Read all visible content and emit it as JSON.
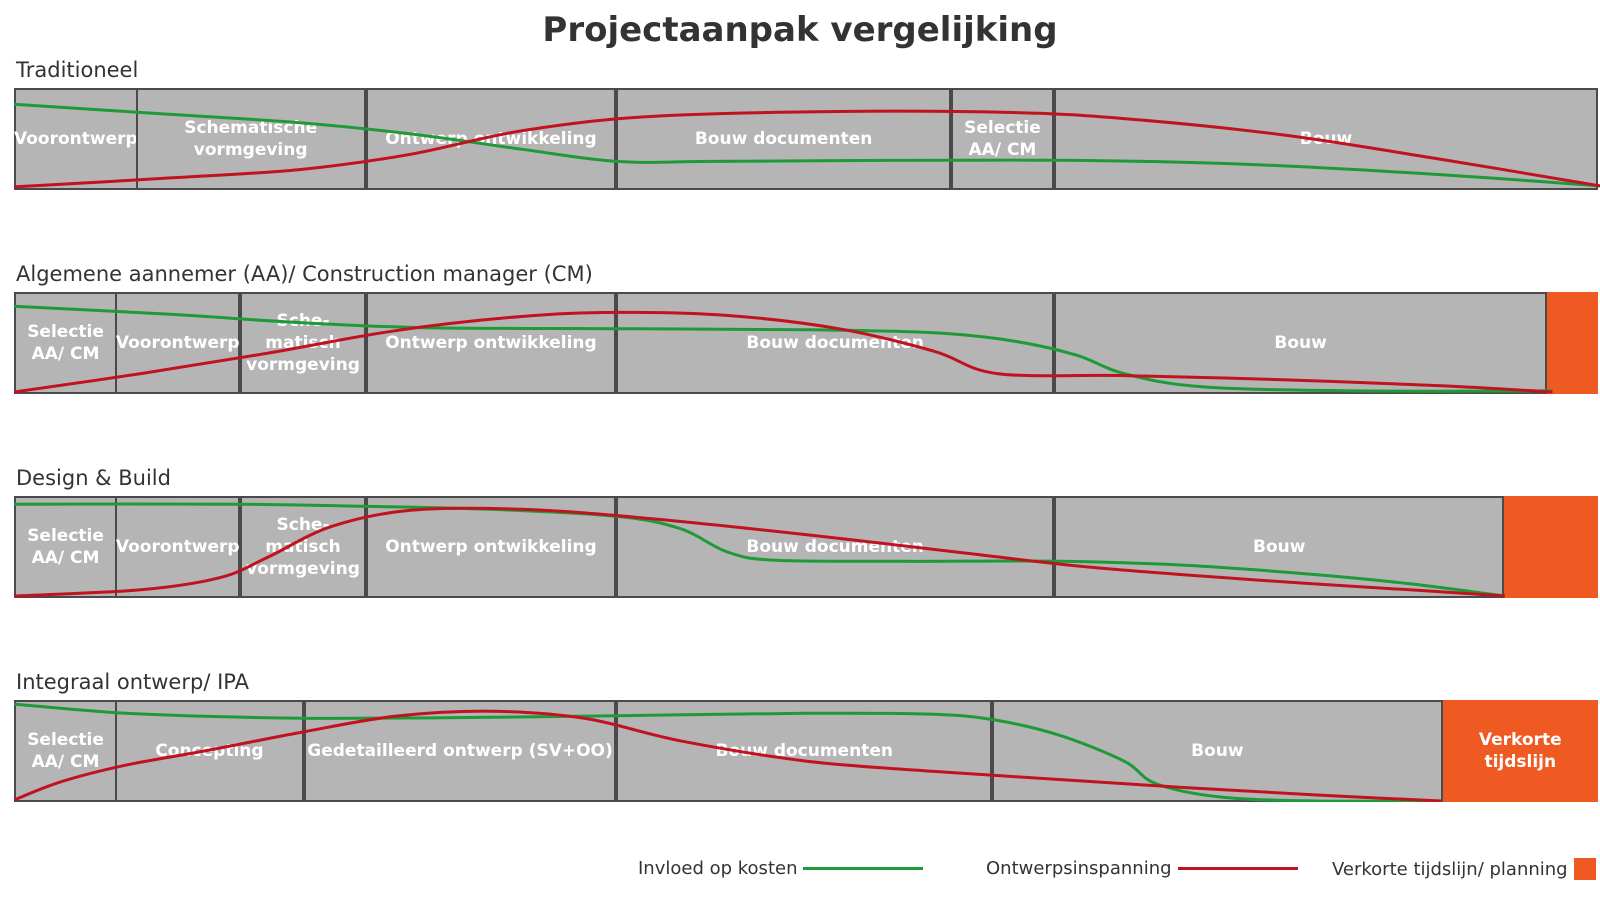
{
  "title": "Projectaanpak vergelijking",
  "colors": {
    "green": "#1f9a38",
    "red": "#c1121f",
    "orange": "#ef5a23",
    "gray": "#b5b5b5"
  },
  "rows": [
    {
      "label": "Traditioneel",
      "segments": [
        {
          "text": "Voorontwerp",
          "start": 0,
          "end": 7.8
        },
        {
          "text": "Schematische\nvormgeving",
          "start": 7.8,
          "end": 22.3
        },
        {
          "text": "Ontwerp ontwikkeling",
          "start": 22.3,
          "end": 38.1
        },
        {
          "text": "Bouw documenten",
          "start": 38.1,
          "end": 59.2
        },
        {
          "text": "Selectie\nAA/ CM",
          "start": 59.2,
          "end": 65.7
        },
        {
          "text": "Bouw",
          "start": 65.7,
          "end": 100
        }
      ],
      "green": [
        [
          0,
          84
        ],
        [
          8,
          76
        ],
        [
          18,
          66
        ],
        [
          25,
          55
        ],
        [
          32,
          40
        ],
        [
          38,
          28
        ],
        [
          44,
          28
        ],
        [
          55,
          29
        ],
        [
          67,
          29
        ],
        [
          78,
          25
        ],
        [
          90,
          15
        ],
        [
          100,
          4
        ]
      ],
      "red": [
        [
          0,
          3
        ],
        [
          10,
          12
        ],
        [
          18,
          20
        ],
        [
          25,
          35
        ],
        [
          32,
          58
        ],
        [
          40,
          72
        ],
        [
          52,
          77
        ],
        [
          63,
          76
        ],
        [
          70,
          70
        ],
        [
          80,
          54
        ],
        [
          90,
          30
        ],
        [
          100,
          4
        ]
      ]
    },
    {
      "label": "Algemene aannemer (AA)/ Construction manager (CM)",
      "segments": [
        {
          "text": "Selectie\nAA/ CM",
          "start": 0,
          "end": 6.5
        },
        {
          "text": "Voorontwerp",
          "start": 6.5,
          "end": 14.4
        },
        {
          "text": "Sche-\nmatisch\nvormgeving",
          "start": 14.4,
          "end": 22.3
        },
        {
          "text": "Ontwerp ontwikkeling",
          "start": 22.3,
          "end": 38.1
        },
        {
          "text": "Bouw documenten",
          "start": 38.1,
          "end": 65.7
        },
        {
          "text": "Bouw",
          "start": 65.7,
          "end": 96.8
        },
        {
          "text": "",
          "start": 96.8,
          "end": 100,
          "orange": true
        }
      ],
      "green": [
        [
          0,
          86
        ],
        [
          10,
          78
        ],
        [
          18,
          70
        ],
        [
          26,
          65
        ],
        [
          38,
          64
        ],
        [
          50,
          63
        ],
        [
          58,
          60
        ],
        [
          63,
          52
        ],
        [
          67,
          38
        ],
        [
          70,
          20
        ],
        [
          75,
          7
        ],
        [
          85,
          3
        ],
        [
          97,
          3
        ]
      ],
      "red": [
        [
          0,
          2
        ],
        [
          8,
          20
        ],
        [
          16,
          40
        ],
        [
          24,
          62
        ],
        [
          32,
          76
        ],
        [
          38,
          80
        ],
        [
          45,
          77
        ],
        [
          52,
          64
        ],
        [
          58,
          42
        ],
        [
          62,
          20
        ],
        [
          70,
          18
        ],
        [
          80,
          14
        ],
        [
          90,
          8
        ],
        [
          97,
          2
        ]
      ]
    },
    {
      "label": "Design & Build",
      "segments": [
        {
          "text": "Selectie\nAA/ CM",
          "start": 0,
          "end": 6.5
        },
        {
          "text": "Voorontwerp",
          "start": 6.5,
          "end": 14.4
        },
        {
          "text": "Sche-\nmatisch\nvormgeving",
          "start": 14.4,
          "end": 22.3
        },
        {
          "text": "Ontwerp ontwikkeling",
          "start": 22.3,
          "end": 38.1
        },
        {
          "text": "Bouw documenten",
          "start": 38.1,
          "end": 65.7
        },
        {
          "text": "Bouw",
          "start": 65.7,
          "end": 94.1
        },
        {
          "text": "",
          "start": 94.1,
          "end": 100,
          "orange": true
        }
      ],
      "green": [
        [
          0,
          92
        ],
        [
          14,
          92
        ],
        [
          22,
          90
        ],
        [
          30,
          87
        ],
        [
          38,
          80
        ],
        [
          42,
          68
        ],
        [
          45,
          45
        ],
        [
          48,
          37
        ],
        [
          56,
          36
        ],
        [
          66,
          36
        ],
        [
          74,
          32
        ],
        [
          82,
          23
        ],
        [
          88,
          14
        ],
        [
          94,
          2
        ]
      ],
      "red": [
        [
          0,
          2
        ],
        [
          8,
          8
        ],
        [
          13,
          20
        ],
        [
          16,
          40
        ],
        [
          20,
          70
        ],
        [
          25,
          86
        ],
        [
          32,
          87
        ],
        [
          40,
          78
        ],
        [
          50,
          62
        ],
        [
          60,
          44
        ],
        [
          68,
          30
        ],
        [
          78,
          18
        ],
        [
          88,
          8
        ],
        [
          94,
          2
        ]
      ]
    },
    {
      "label": "Integraal ontwerp/ IPA",
      "segments": [
        {
          "text": "Selectie\nAA/ CM",
          "start": 0,
          "end": 6.5
        },
        {
          "text": "Concepting",
          "start": 6.5,
          "end": 18.4
        },
        {
          "text": "Gedetailleerd ontwerp (SV+OO)",
          "start": 18.4,
          "end": 38.1
        },
        {
          "text": "Bouw documenten",
          "start": 38.1,
          "end": 61.8
        },
        {
          "text": "Bouw",
          "start": 61.8,
          "end": 90.2
        },
        {
          "text": "Verkorte\ntijdslijn",
          "start": 90.2,
          "end": 100,
          "orange": true
        }
      ],
      "green": [
        [
          0,
          96
        ],
        [
          6,
          88
        ],
        [
          12,
          84
        ],
        [
          20,
          82
        ],
        [
          30,
          83
        ],
        [
          40,
          85
        ],
        [
          50,
          87
        ],
        [
          58,
          86
        ],
        [
          62,
          80
        ],
        [
          66,
          65
        ],
        [
          70,
          40
        ],
        [
          72,
          18
        ],
        [
          76,
          5
        ],
        [
          82,
          1
        ],
        [
          90,
          1
        ]
      ],
      "red": [
        [
          0,
          2
        ],
        [
          3,
          20
        ],
        [
          7,
          36
        ],
        [
          12,
          50
        ],
        [
          18,
          68
        ],
        [
          24,
          84
        ],
        [
          30,
          89
        ],
        [
          36,
          82
        ],
        [
          42,
          60
        ],
        [
          50,
          40
        ],
        [
          58,
          30
        ],
        [
          66,
          22
        ],
        [
          74,
          14
        ],
        [
          82,
          7
        ],
        [
          90,
          1
        ]
      ]
    }
  ],
  "legend": {
    "green_label": "Invloed op kosten",
    "red_label": "Ontwerpsinspanning",
    "orange_label": "Verkorte tijdslijn/ planning"
  }
}
